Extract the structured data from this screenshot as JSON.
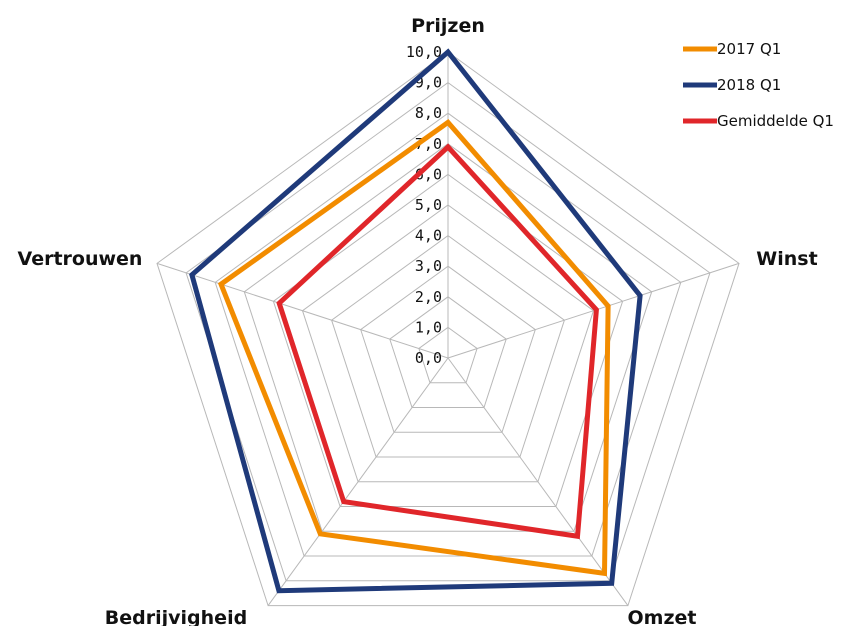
{
  "chart_data": {
    "type": "radar",
    "axes": [
      "Prijzen",
      "Winst",
      "Omzet",
      "Bedrijvigheid",
      "Vertrouwen"
    ],
    "rlim": [
      0,
      10
    ],
    "tick_values": [
      0,
      1,
      2,
      3,
      4,
      5,
      6,
      7,
      8,
      9,
      10
    ],
    "tick_labels": [
      "0,0",
      "1,0",
      "2,0",
      "3,0",
      "4,0",
      "5,0",
      "6,0",
      "7,0",
      "8,0",
      "9,0",
      "10,0"
    ],
    "grid": true,
    "legend_position": "top-right",
    "series": [
      {
        "name": "2017 Q1",
        "color": "#f28c00",
        "values": [
          7.7,
          5.5,
          8.7,
          7.1,
          7.8
        ]
      },
      {
        "name": "2018 Q1",
        "color": "#1f3a7a",
        "values": [
          10.0,
          6.6,
          9.1,
          9.4,
          8.8
        ]
      },
      {
        "name": "Gemiddelde Q1",
        "color": "#e0262a",
        "values": [
          6.9,
          5.1,
          7.2,
          5.8,
          5.8
        ]
      }
    ]
  }
}
